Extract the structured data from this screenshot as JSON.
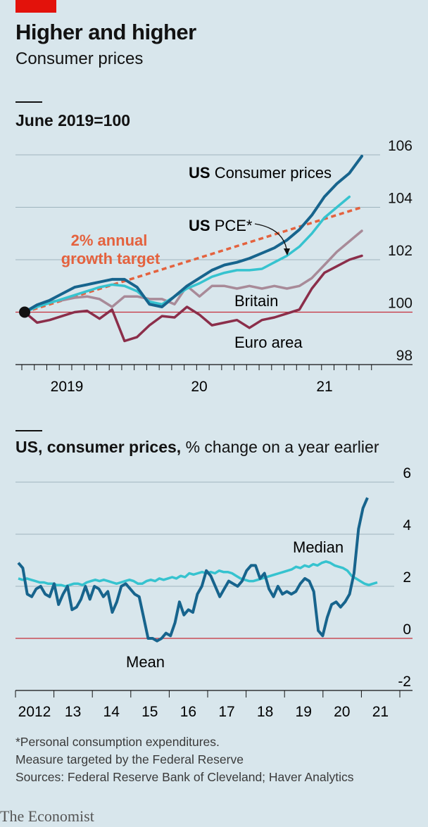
{
  "header": {
    "title": "Higher and higher",
    "subtitle": "Consumer prices"
  },
  "chart_data": [
    {
      "type": "line",
      "unit_label": "June 2019=100",
      "ylim": [
        98,
        106
      ],
      "yticks": [
        "106",
        "104",
        "102",
        "100",
        "98"
      ],
      "grid": true,
      "xticks": [
        "2019",
        "20",
        "21"
      ],
      "x_start": "2019-06",
      "baseline": 100,
      "series": [
        {
          "name": "US Consumer prices",
          "name_bold": "US",
          "name_rest": "Consumer prices",
          "color": "#17648d",
          "values": [
            100,
            100.28,
            100.45,
            100.7,
            100.95,
            101.05,
            101.15,
            101.25,
            101.25,
            100.95,
            100.3,
            100.2,
            100.6,
            101.0,
            101.3,
            101.6,
            101.8,
            101.9,
            102.05,
            102.25,
            102.45,
            102.75,
            103.15,
            103.7,
            104.4,
            104.9,
            105.3,
            105.95
          ]
        },
        {
          "name": "US PCE*",
          "name_bold": "US",
          "name_rest": "PCE*",
          "color": "#36c3cf",
          "values": [
            100,
            100.2,
            100.35,
            100.5,
            100.65,
            100.8,
            100.95,
            101.05,
            101.0,
            100.8,
            100.4,
            100.3,
            100.6,
            100.9,
            101.1,
            101.35,
            101.5,
            101.6,
            101.6,
            101.65,
            101.9,
            102.15,
            102.5,
            103.0,
            103.6,
            104.0,
            104.4
          ]
        },
        {
          "name": "Britain",
          "color": "#a88a98",
          "values": [
            100,
            100.25,
            100.4,
            100.45,
            100.55,
            100.6,
            100.5,
            100.2,
            100.6,
            100.6,
            100.5,
            100.5,
            100.3,
            101.0,
            100.6,
            101.0,
            101.0,
            100.9,
            101.0,
            100.9,
            101.0,
            100.9,
            101.0,
            101.3,
            101.8,
            102.3,
            102.7,
            103.1
          ]
        },
        {
          "name": "Euro area",
          "color": "#8b2e4a",
          "values": [
            100,
            99.6,
            99.7,
            99.85,
            100.0,
            100.05,
            99.75,
            100.1,
            98.9,
            99.05,
            99.5,
            99.85,
            99.8,
            100.2,
            99.9,
            99.5,
            99.6,
            99.7,
            99.4,
            99.7,
            99.8,
            99.95,
            100.1,
            100.9,
            101.5,
            101.75,
            102.0,
            102.15
          ]
        }
      ],
      "annotation": {
        "line1": "2% annual",
        "line2": "growth target",
        "color": "#e4623e",
        "start": 100,
        "end": 104.0
      }
    },
    {
      "type": "line",
      "unit_label_bold": "US, consumer prices,",
      "unit_label_rest": "% change on a year earlier",
      "ylim": [
        -2,
        6
      ],
      "yticks": [
        "6",
        "4",
        "2",
        "0",
        "-2"
      ],
      "grid": true,
      "xticks": [
        "2012",
        "13",
        "14",
        "15",
        "16",
        "17",
        "18",
        "19",
        "20",
        "21"
      ],
      "baseline": 0,
      "series": [
        {
          "name": "Median",
          "color": "#36c3cf",
          "values": [
            2.3,
            2.25,
            2.3,
            2.25,
            2.2,
            2.15,
            2.15,
            2.1,
            2.1,
            2.05,
            2.05,
            2.0,
            2.05,
            2.1,
            2.1,
            2.05,
            2.15,
            2.2,
            2.25,
            2.2,
            2.25,
            2.2,
            2.15,
            2.1,
            2.15,
            2.2,
            2.25,
            2.2,
            2.1,
            2.1,
            2.2,
            2.25,
            2.2,
            2.3,
            2.25,
            2.3,
            2.35,
            2.3,
            2.4,
            2.35,
            2.5,
            2.45,
            2.5,
            2.55,
            2.5,
            2.55,
            2.5,
            2.6,
            2.55,
            2.55,
            2.5,
            2.4,
            2.3,
            2.25,
            2.2,
            2.2,
            2.25,
            2.3,
            2.35,
            2.4,
            2.45,
            2.5,
            2.55,
            2.6,
            2.65,
            2.75,
            2.7,
            2.8,
            2.75,
            2.85,
            2.8,
            2.9,
            2.95,
            2.9,
            2.8,
            2.75,
            2.7,
            2.6,
            2.4,
            2.3,
            2.2,
            2.1,
            2.05,
            2.1,
            2.15
          ]
        },
        {
          "name": "Mean",
          "color": "#17648d",
          "values": [
            2.9,
            2.7,
            1.7,
            1.6,
            1.9,
            2.0,
            1.7,
            1.6,
            2.1,
            1.3,
            1.7,
            2.0,
            1.1,
            1.2,
            1.5,
            2.0,
            1.5,
            2.0,
            1.9,
            1.6,
            1.8,
            1.0,
            1.4,
            2.0,
            2.1,
            1.9,
            1.7,
            1.6,
            0.8,
            0.0,
            0.0,
            -0.1,
            0.0,
            0.2,
            0.1,
            0.6,
            1.4,
            0.9,
            1.1,
            1.0,
            1.7,
            2.0,
            2.6,
            2.4,
            2.0,
            1.6,
            1.9,
            2.2,
            2.1,
            2.0,
            2.2,
            2.6,
            2.8,
            2.8,
            2.3,
            2.5,
            1.9,
            1.6,
            2.0,
            1.7,
            1.8,
            1.7,
            1.8,
            2.1,
            2.3,
            2.2,
            1.8,
            0.3,
            0.1,
            0.8,
            1.3,
            1.4,
            1.2,
            1.4,
            1.7,
            2.5,
            4.2,
            5.0,
            5.4
          ]
        }
      ]
    }
  ],
  "footnotes": {
    "line1": "*Personal consumption expenditures.",
    "line2": "Measure targeted by the Federal Reserve",
    "sources": "Sources: Federal Reserve Bank of Cleveland; Haver Analytics"
  },
  "brand": "The Economist"
}
